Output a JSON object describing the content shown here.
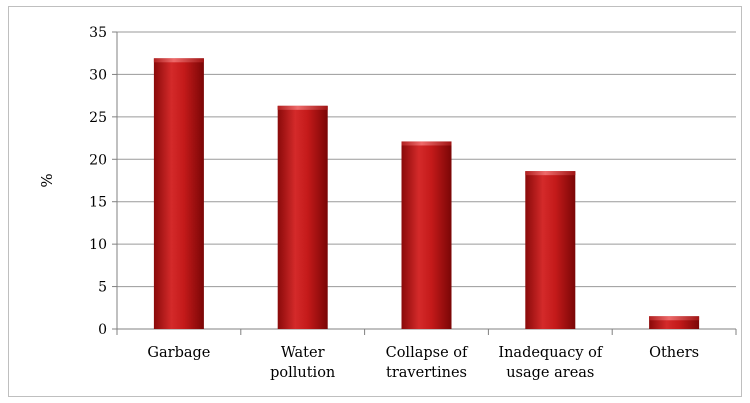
{
  "chart_data": {
    "type": "bar",
    "title": "",
    "xlabel": "",
    "ylabel": "%",
    "ylim": [
      0,
      35
    ],
    "yticks": [
      0,
      5,
      10,
      15,
      20,
      25,
      30,
      35
    ],
    "grid": true,
    "legend": "none",
    "categories": [
      [
        "Garbage"
      ],
      [
        "Water",
        "pollution"
      ],
      [
        "Collapse of",
        "travertines"
      ],
      [
        "Inadequacy of",
        "usage areas"
      ],
      [
        "Others"
      ]
    ],
    "values": [
      31.9,
      26.3,
      22.1,
      18.6,
      1.5
    ],
    "bar_color": "#c00000"
  }
}
